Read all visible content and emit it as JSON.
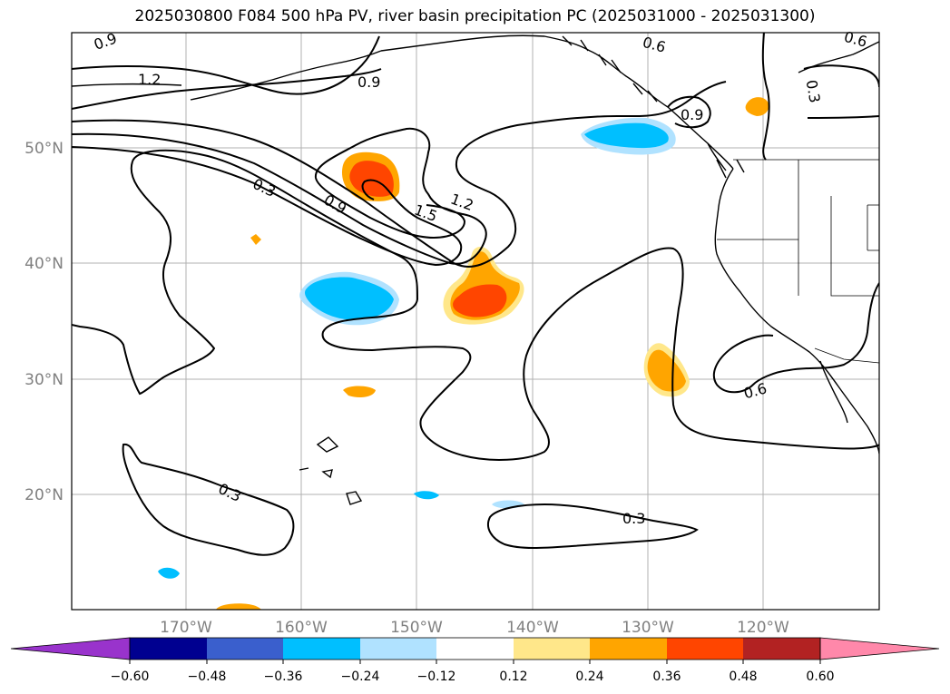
{
  "title": "2025030800 F084 500 hPa PV, river basin precipitation PC (2025031000 - 2025031300)",
  "map": {
    "lat_labels": [
      "50°N",
      "40°N",
      "30°N",
      "20°N"
    ],
    "lon_labels": [
      "170°W",
      "160°W",
      "150°W",
      "140°W",
      "130°W",
      "120°W"
    ],
    "contour_labels": [
      "0.9",
      "1.2",
      "0.9",
      "0.6",
      "0.6",
      "0.3",
      "0.9",
      "0.3",
      "0.9",
      "1.5",
      "1.2",
      "0.6",
      "0.3",
      "0.3"
    ]
  },
  "colorbar": {
    "tick_labels": [
      "−0.60",
      "−0.48",
      "−0.36",
      "−0.24",
      "−0.12",
      "0.12",
      "0.24",
      "0.36",
      "0.48",
      "0.60"
    ],
    "colors": [
      "#9933cc",
      "#000090",
      "#3a5fcd",
      "#00bfff",
      "#b0e2ff",
      "#ffffff",
      "#ffe78a",
      "#ffa500",
      "#ff4500",
      "#b22222",
      "#ff88aa"
    ]
  }
}
